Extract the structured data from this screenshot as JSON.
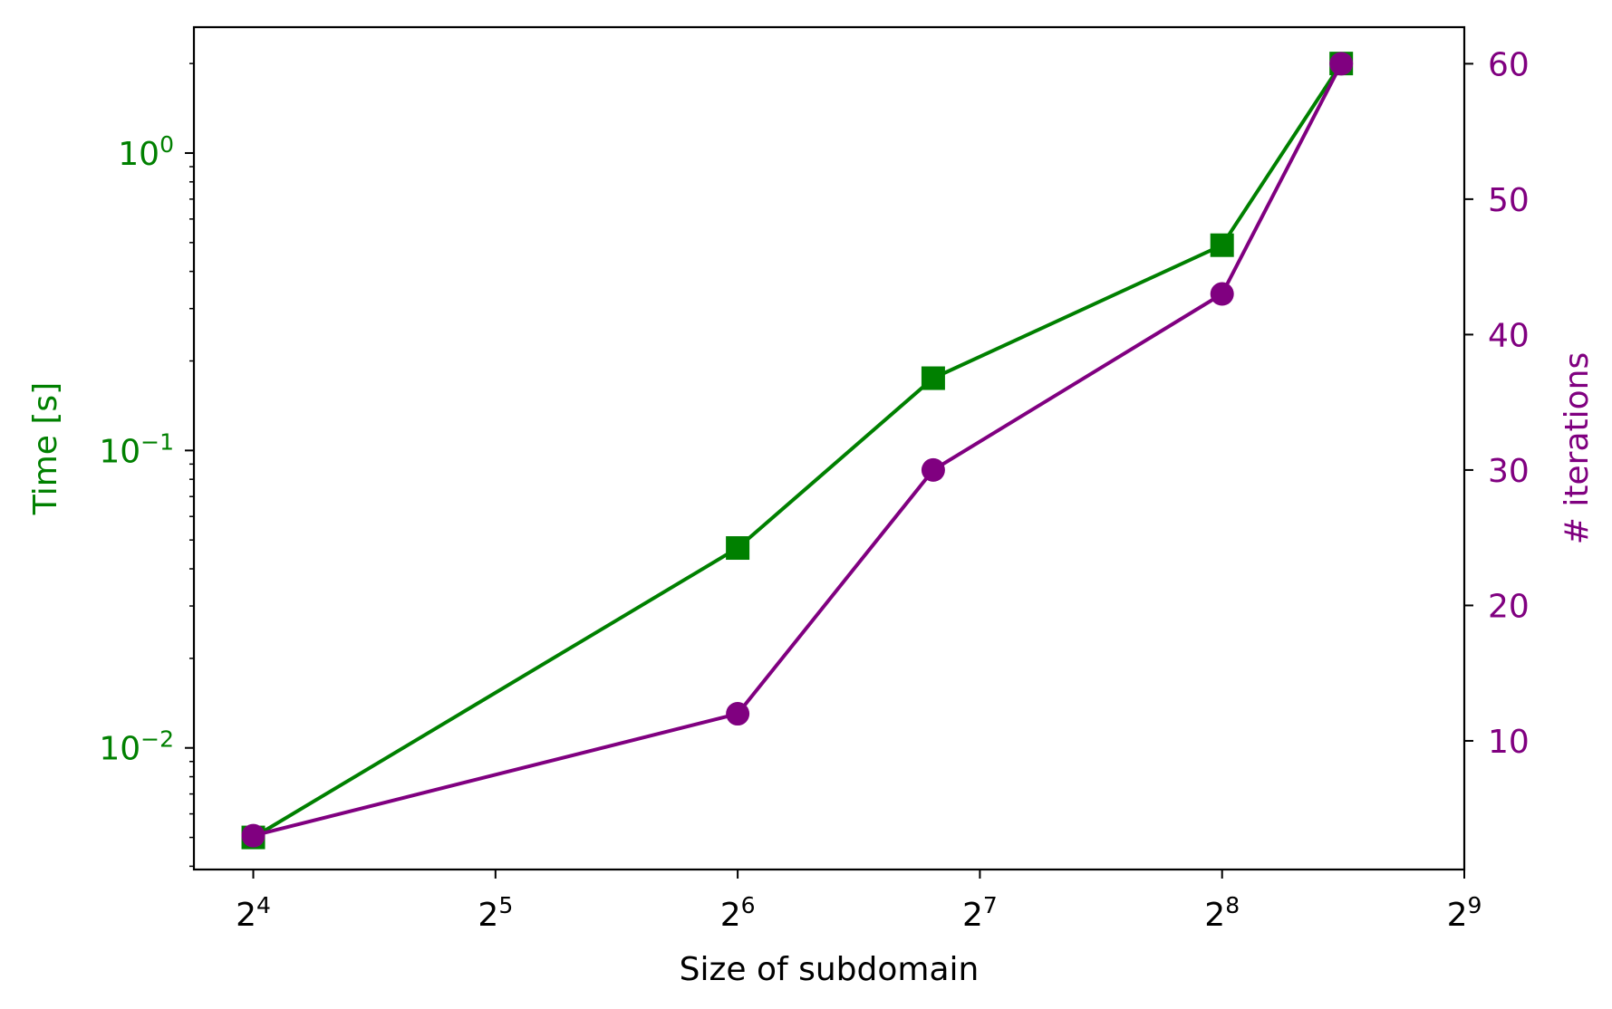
{
  "chart_data": {
    "type": "line",
    "title": "",
    "xlabel": "Size of subdomain",
    "x_scale": "log2",
    "xlim": [
      13.5,
      512
    ],
    "x_ticks": [
      {
        "value": 16,
        "base": "2",
        "exp": "4"
      },
      {
        "value": 32,
        "base": "2",
        "exp": "5"
      },
      {
        "value": 64,
        "base": "2",
        "exp": "6"
      },
      {
        "value": 128,
        "base": "2",
        "exp": "7"
      },
      {
        "value": 256,
        "base": "2",
        "exp": "8"
      },
      {
        "value": 512,
        "base": "2",
        "exp": "9"
      }
    ],
    "left_axis": {
      "label": "Time [s]",
      "scale": "log",
      "ylim": [
        0.0039,
        2.65
      ],
      "color": "#008000",
      "ticks": [
        {
          "value": 1,
          "base": "10",
          "exp": "0"
        },
        {
          "value": 0.1,
          "base": "10",
          "exp": "−1"
        },
        {
          "value": 0.01,
          "base": "10",
          "exp": "−2"
        }
      ]
    },
    "right_axis": {
      "label": "# iterations",
      "scale": "linear",
      "ylim": [
        0.5,
        62.7
      ],
      "color": "#800080",
      "ticks": [
        10,
        20,
        30,
        40,
        50,
        60
      ]
    },
    "series": [
      {
        "axis": "left",
        "marker": "square",
        "color": "#008000",
        "x": [
          16,
          64,
          112,
          256,
          360
        ],
        "values": [
          0.005,
          0.047,
          0.175,
          0.49,
          2.0
        ]
      },
      {
        "axis": "right",
        "marker": "circle",
        "color": "#800080",
        "x": [
          16,
          64,
          112,
          256,
          360
        ],
        "values": [
          3,
          12,
          30,
          43,
          60
        ]
      }
    ],
    "grid": false,
    "legend": "none"
  }
}
